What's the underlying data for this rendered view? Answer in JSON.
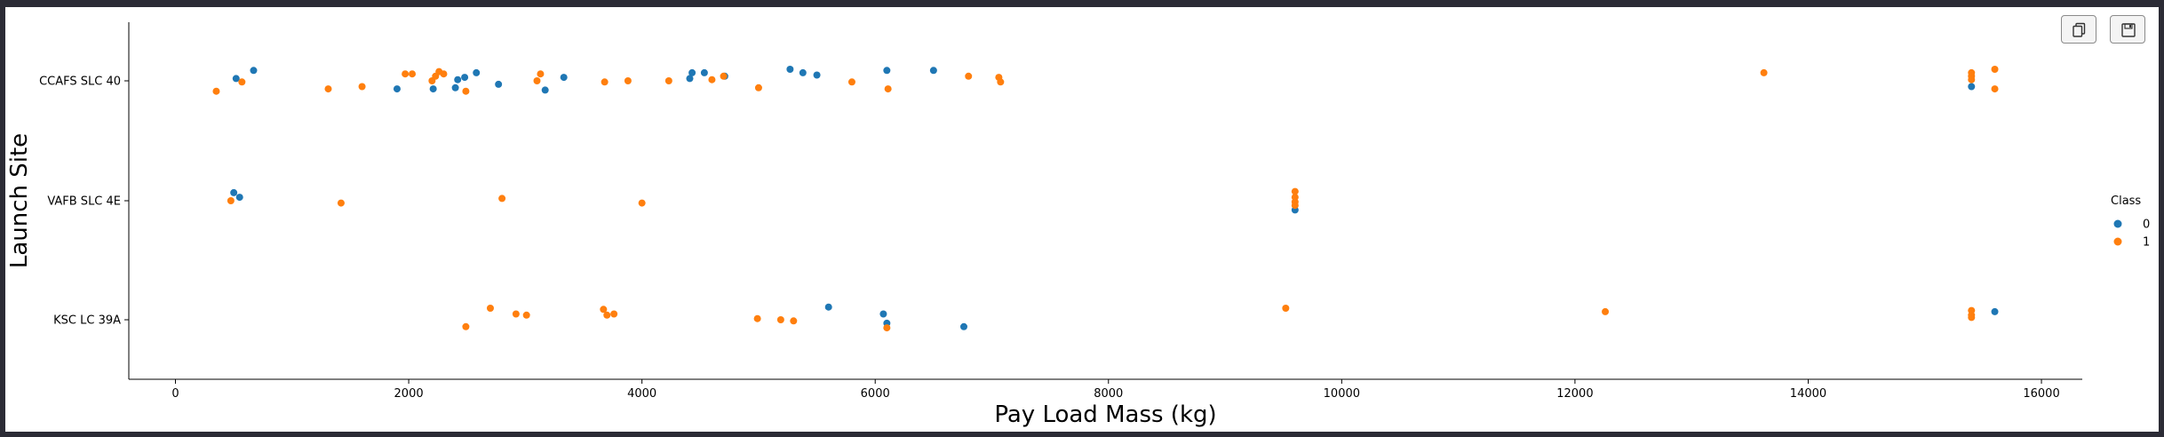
{
  "toolbar": {
    "copy_icon": "copy-icon",
    "save_icon": "save-icon"
  },
  "chart_data": {
    "type": "scatter",
    "title": "",
    "xlabel": "Pay Load Mass (kg)",
    "ylabel": "Launch Site",
    "xlim": [
      -400,
      16350
    ],
    "x_ticks": [
      0,
      2000,
      4000,
      6000,
      8000,
      10000,
      12000,
      14000,
      16000
    ],
    "categories": [
      "CCAFS SLC 40",
      "VAFB SLC 4E",
      "KSC LC 39A"
    ],
    "grid": false,
    "legend": {
      "title": "Class",
      "placement": "right",
      "entries": [
        {
          "label": "0",
          "color": "#1f77b4"
        },
        {
          "label": "1",
          "color": "#ff7f0e"
        }
      ]
    },
    "series": [
      {
        "name": "0",
        "color": "#1f77b4",
        "points": [
          {
            "x": 520,
            "site": "CCAFS SLC 40",
            "jitter": -0.02
          },
          {
            "x": 670,
            "site": "CCAFS SLC 40",
            "jitter": -0.09
          },
          {
            "x": 1900,
            "site": "CCAFS SLC 40",
            "jitter": 0.07
          },
          {
            "x": 2210,
            "site": "CCAFS SLC 40",
            "jitter": 0.07
          },
          {
            "x": 2400,
            "site": "CCAFS SLC 40",
            "jitter": 0.06
          },
          {
            "x": 2420,
            "site": "CCAFS SLC 40",
            "jitter": -0.01
          },
          {
            "x": 2480,
            "site": "CCAFS SLC 40",
            "jitter": -0.03
          },
          {
            "x": 2580,
            "site": "CCAFS SLC 40",
            "jitter": -0.07
          },
          {
            "x": 2770,
            "site": "CCAFS SLC 40",
            "jitter": 0.03
          },
          {
            "x": 3170,
            "site": "CCAFS SLC 40",
            "jitter": 0.08
          },
          {
            "x": 3330,
            "site": "CCAFS SLC 40",
            "jitter": -0.03
          },
          {
            "x": 4410,
            "site": "CCAFS SLC 40",
            "jitter": -0.02
          },
          {
            "x": 4430,
            "site": "CCAFS SLC 40",
            "jitter": -0.07
          },
          {
            "x": 4535,
            "site": "CCAFS SLC 40",
            "jitter": -0.07
          },
          {
            "x": 4710,
            "site": "CCAFS SLC 40",
            "jitter": -0.04
          },
          {
            "x": 5270,
            "site": "CCAFS SLC 40",
            "jitter": -0.1
          },
          {
            "x": 5380,
            "site": "CCAFS SLC 40",
            "jitter": -0.07
          },
          {
            "x": 5500,
            "site": "CCAFS SLC 40",
            "jitter": -0.05
          },
          {
            "x": 6100,
            "site": "CCAFS SLC 40",
            "jitter": -0.09
          },
          {
            "x": 6500,
            "site": "CCAFS SLC 40",
            "jitter": -0.09
          },
          {
            "x": 15400,
            "site": "CCAFS SLC 40",
            "jitter": 0.05
          },
          {
            "x": 500,
            "site": "VAFB SLC 4E",
            "jitter": -0.07
          },
          {
            "x": 550,
            "site": "VAFB SLC 4E",
            "jitter": -0.03
          },
          {
            "x": 9600,
            "site": "VAFB SLC 4E",
            "jitter": 0.08
          },
          {
            "x": 5600,
            "site": "KSC LC 39A",
            "jitter": -0.11
          },
          {
            "x": 6070,
            "site": "KSC LC 39A",
            "jitter": -0.05
          },
          {
            "x": 6100,
            "site": "KSC LC 39A",
            "jitter": 0.03
          },
          {
            "x": 6760,
            "site": "KSC LC 39A",
            "jitter": 0.06
          },
          {
            "x": 15600,
            "site": "KSC LC 39A",
            "jitter": -0.07
          }
        ]
      },
      {
        "name": "1",
        "color": "#ff7f0e",
        "points": [
          {
            "x": 350,
            "site": "CCAFS SLC 40",
            "jitter": 0.09
          },
          {
            "x": 570,
            "site": "CCAFS SLC 40",
            "jitter": 0.01
          },
          {
            "x": 1310,
            "site": "CCAFS SLC 40",
            "jitter": 0.07
          },
          {
            "x": 1600,
            "site": "CCAFS SLC 40",
            "jitter": 0.05
          },
          {
            "x": 1970,
            "site": "CCAFS SLC 40",
            "jitter": -0.06
          },
          {
            "x": 2030,
            "site": "CCAFS SLC 40",
            "jitter": -0.06
          },
          {
            "x": 2200,
            "site": "CCAFS SLC 40",
            "jitter": 0.0
          },
          {
            "x": 2230,
            "site": "CCAFS SLC 40",
            "jitter": -0.04
          },
          {
            "x": 2260,
            "site": "CCAFS SLC 40",
            "jitter": -0.08
          },
          {
            "x": 2300,
            "site": "CCAFS SLC 40",
            "jitter": -0.06
          },
          {
            "x": 2490,
            "site": "CCAFS SLC 40",
            "jitter": 0.09
          },
          {
            "x": 3100,
            "site": "CCAFS SLC 40",
            "jitter": 0.0
          },
          {
            "x": 3130,
            "site": "CCAFS SLC 40",
            "jitter": -0.06
          },
          {
            "x": 3680,
            "site": "CCAFS SLC 40",
            "jitter": 0.01
          },
          {
            "x": 3880,
            "site": "CCAFS SLC 40",
            "jitter": 0.0
          },
          {
            "x": 4230,
            "site": "CCAFS SLC 40",
            "jitter": 0.0
          },
          {
            "x": 4600,
            "site": "CCAFS SLC 40",
            "jitter": -0.01
          },
          {
            "x": 4700,
            "site": "CCAFS SLC 40",
            "jitter": -0.04
          },
          {
            "x": 5000,
            "site": "CCAFS SLC 40",
            "jitter": 0.06
          },
          {
            "x": 5800,
            "site": "CCAFS SLC 40",
            "jitter": 0.01
          },
          {
            "x": 6110,
            "site": "CCAFS SLC 40",
            "jitter": 0.07
          },
          {
            "x": 6800,
            "site": "CCAFS SLC 40",
            "jitter": -0.04
          },
          {
            "x": 7060,
            "site": "CCAFS SLC 40",
            "jitter": -0.03
          },
          {
            "x": 7075,
            "site": "CCAFS SLC 40",
            "jitter": 0.01
          },
          {
            "x": 13620,
            "site": "CCAFS SLC 40",
            "jitter": -0.07
          },
          {
            "x": 15400,
            "site": "CCAFS SLC 40",
            "jitter": -0.07
          },
          {
            "x": 15400,
            "site": "CCAFS SLC 40",
            "jitter": -0.04
          },
          {
            "x": 15400,
            "site": "CCAFS SLC 40",
            "jitter": -0.01
          },
          {
            "x": 15600,
            "site": "CCAFS SLC 40",
            "jitter": -0.1
          },
          {
            "x": 15600,
            "site": "CCAFS SLC 40",
            "jitter": 0.07
          },
          {
            "x": 475,
            "site": "VAFB SLC 4E",
            "jitter": 0.0
          },
          {
            "x": 1420,
            "site": "VAFB SLC 4E",
            "jitter": 0.02
          },
          {
            "x": 2800,
            "site": "VAFB SLC 4E",
            "jitter": -0.02
          },
          {
            "x": 4000,
            "site": "VAFB SLC 4E",
            "jitter": 0.02
          },
          {
            "x": 9600,
            "site": "VAFB SLC 4E",
            "jitter": -0.08
          },
          {
            "x": 9600,
            "site": "VAFB SLC 4E",
            "jitter": -0.03
          },
          {
            "x": 9600,
            "site": "VAFB SLC 4E",
            "jitter": 0.01
          },
          {
            "x": 9600,
            "site": "VAFB SLC 4E",
            "jitter": 0.04
          },
          {
            "x": 2490,
            "site": "KSC LC 39A",
            "jitter": 0.06
          },
          {
            "x": 2700,
            "site": "KSC LC 39A",
            "jitter": -0.1
          },
          {
            "x": 2920,
            "site": "KSC LC 39A",
            "jitter": -0.05
          },
          {
            "x": 3010,
            "site": "KSC LC 39A",
            "jitter": -0.04
          },
          {
            "x": 3670,
            "site": "KSC LC 39A",
            "jitter": -0.09
          },
          {
            "x": 3700,
            "site": "KSC LC 39A",
            "jitter": -0.04
          },
          {
            "x": 3760,
            "site": "KSC LC 39A",
            "jitter": -0.05
          },
          {
            "x": 4990,
            "site": "KSC LC 39A",
            "jitter": -0.01
          },
          {
            "x": 5190,
            "site": "KSC LC 39A",
            "jitter": 0.0
          },
          {
            "x": 5300,
            "site": "KSC LC 39A",
            "jitter": 0.01
          },
          {
            "x": 6100,
            "site": "KSC LC 39A",
            "jitter": 0.07
          },
          {
            "x": 9520,
            "site": "KSC LC 39A",
            "jitter": -0.1
          },
          {
            "x": 12260,
            "site": "KSC LC 39A",
            "jitter": -0.07
          },
          {
            "x": 15400,
            "site": "KSC LC 39A",
            "jitter": -0.08
          },
          {
            "x": 15400,
            "site": "KSC LC 39A",
            "jitter": -0.04
          },
          {
            "x": 15400,
            "site": "KSC LC 39A",
            "jitter": -0.02
          }
        ]
      }
    ]
  }
}
